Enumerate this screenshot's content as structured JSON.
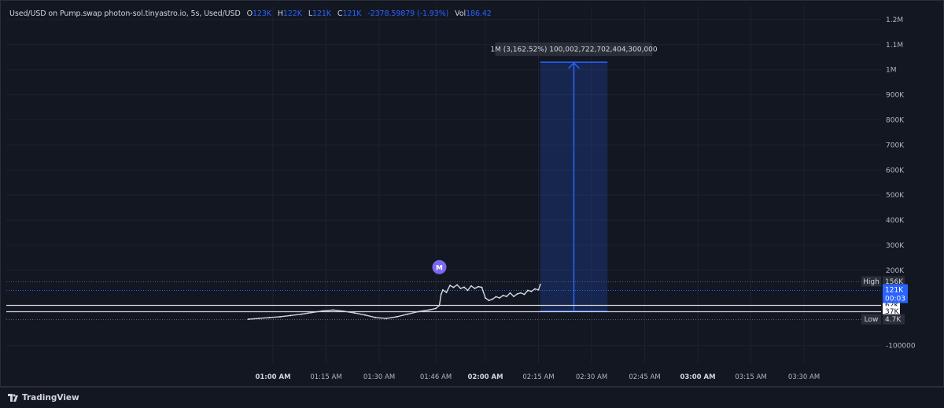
{
  "legend": {
    "symbol_text": "Used/USD on Pump.swap photon-sol.tinyastro.io, 5s, Used/USD",
    "open_key": "O",
    "open_val": "123K",
    "high_key": "H",
    "high_val": "122K",
    "low_key": "L",
    "low_val": "121K",
    "close_key": "C",
    "close_val": "121K",
    "change": "-2378.59879 (-1.93%)",
    "vol_key": "Vol",
    "vol_val": "186.42"
  },
  "footer": {
    "brand": "TradingView"
  },
  "colors": {
    "accent": "#2962ff",
    "background": "#131722",
    "grid": "#1e222d",
    "text": "#b2b5be",
    "marker": "#7b68ee"
  },
  "chart_data": {
    "type": "line",
    "title": "",
    "xlabel": "",
    "ylabel": "",
    "y_unit": "USD",
    "grid": true,
    "ylim": [
      -110000,
      1250000
    ],
    "y_ticks": [
      {
        "label": "1.2M",
        "v": 1200000
      },
      {
        "label": "1.1M",
        "v": 1100000
      },
      {
        "label": "1M",
        "v": 1000000
      },
      {
        "label": "900K",
        "v": 900000
      },
      {
        "label": "800K",
        "v": 800000
      },
      {
        "label": "700K",
        "v": 700000
      },
      {
        "label": "600K",
        "v": 600000
      },
      {
        "label": "500K",
        "v": 500000
      },
      {
        "label": "400K",
        "v": 400000
      },
      {
        "label": "300K",
        "v": 300000
      },
      {
        "label": "200K",
        "v": 200000
      },
      {
        "label": "-100000",
        "v": -100000
      }
    ],
    "x_ticks": [
      {
        "label": "01:00 AM",
        "t": 60,
        "bold": true
      },
      {
        "label": "01:15 AM",
        "t": 75,
        "bold": false
      },
      {
        "label": "01:30 AM",
        "t": 90,
        "bold": false
      },
      {
        "label": "01:46 AM",
        "t": 106,
        "bold": false
      },
      {
        "label": "02:00 AM",
        "t": 120,
        "bold": true
      },
      {
        "label": "02:15 AM",
        "t": 135,
        "bold": false
      },
      {
        "label": "02:30 AM",
        "t": 150,
        "bold": false
      },
      {
        "label": "02:45 AM",
        "t": 165,
        "bold": false
      },
      {
        "label": "03:00 AM",
        "t": 180,
        "bold": true
      },
      {
        "label": "03:15 AM",
        "t": 195,
        "bold": false
      },
      {
        "label": "03:30 AM",
        "t": 210,
        "bold": false
      }
    ],
    "xlim": [
      53.5,
      244
    ],
    "x_unit": "minutes after 00:00",
    "series": [
      {
        "name": "",
        "x": [
          53,
          56,
          59,
          62,
          65,
          68,
          71,
          74,
          77,
          80,
          83,
          86,
          89,
          92,
          95,
          98,
          101,
          104,
          106,
          107,
          107.5,
          108,
          109,
          110,
          111,
          112,
          113,
          114,
          115,
          116,
          117,
          118,
          119,
          120,
          121,
          122,
          123,
          124,
          125,
          126,
          127,
          128,
          129,
          130,
          131,
          132,
          133,
          134,
          135,
          135.5
        ],
        "y": [
          5000,
          8000,
          12000,
          15000,
          20000,
          25000,
          32000,
          38000,
          42000,
          37000,
          30000,
          22000,
          12000,
          8000,
          15000,
          25000,
          35000,
          42000,
          48000,
          60000,
          105000,
          122000,
          112000,
          140000,
          132000,
          142000,
          128000,
          133000,
          120000,
          138000,
          128000,
          135000,
          132000,
          90000,
          80000,
          85000,
          95000,
          90000,
          100000,
          96000,
          110000,
          96000,
          106000,
          110000,
          104000,
          120000,
          116000,
          126000,
          122000,
          144000
        ]
      }
    ],
    "horizontal_lines": [
      {
        "label": "High",
        "value_label": "156K",
        "value": 156000,
        "style": "dotted"
      },
      {
        "label": "",
        "value_label": "62K",
        "value": 62000,
        "style": "solid"
      },
      {
        "label": "",
        "value_label": "37K",
        "value": 37000,
        "style": "solid"
      },
      {
        "label": "Low",
        "value_label": "4.7K",
        "value": 4700,
        "style": "dotted"
      }
    ],
    "current_price": {
      "value_label": "121K",
      "value": 121000,
      "countdown": "00:03"
    },
    "marker": {
      "label": "M",
      "t": 107,
      "value": 213000
    },
    "measure": {
      "label": "1M (3,162.52%) 100,002,722,702,404,300,000",
      "t_start": 135.5,
      "t_end": 154.5,
      "t_arrow": 145,
      "value_bottom": 37000,
      "value_top": 1030000
    }
  }
}
